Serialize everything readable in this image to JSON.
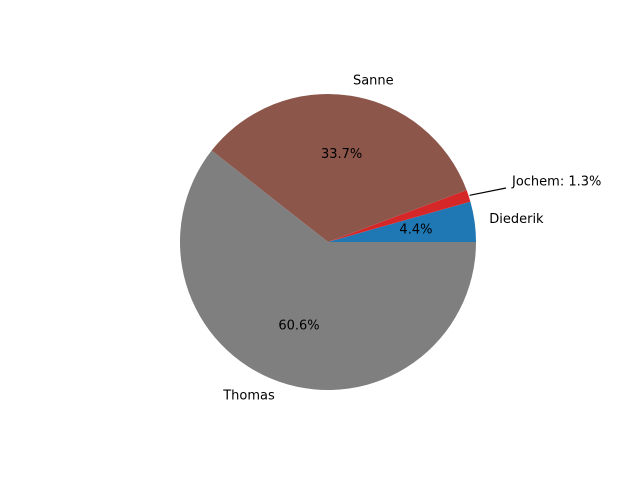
{
  "chart_data": {
    "type": "pie",
    "title": "",
    "slices": [
      {
        "label": "Diederik",
        "value": 4.4,
        "pct_label": "4.4%",
        "color": "#1f77b4"
      },
      {
        "label": "Jochem",
        "value": 1.3,
        "callout_label": "Jochem: 1.3%",
        "color": "#d62728"
      },
      {
        "label": "Sanne",
        "value": 33.7,
        "pct_label": "33.7%",
        "color": "#8c564b"
      },
      {
        "label": "Thomas",
        "value": 60.6,
        "pct_label": "60.6%",
        "color": "#7f7f7f"
      }
    ],
    "start_angle_deg": 0,
    "direction": "counterclockwise",
    "legend": "none"
  }
}
